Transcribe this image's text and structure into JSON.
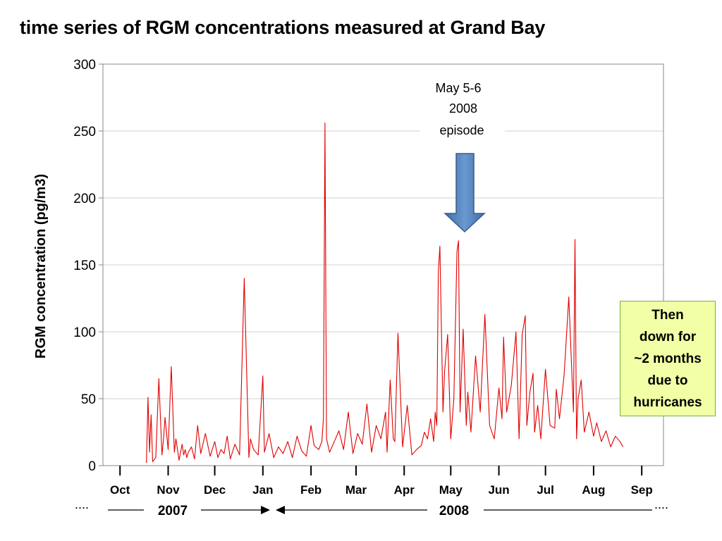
{
  "title": "time series of RGM concentrations measured at Grand Bay",
  "note": {
    "lines": [
      "Then",
      "down for",
      "~2 months",
      "due to",
      "hurricanes"
    ],
    "background": "#f2ffa6",
    "border": "#7ab040"
  },
  "episode": {
    "lines": [
      "May 5-6",
      "2008",
      "episode"
    ],
    "arrow_color": "#4f81bd",
    "arrow_border": "#385d8a"
  },
  "timeline": {
    "ellipsis": "....",
    "year_2007": "2007",
    "year_2008": "2008"
  },
  "chart_data": {
    "type": "line",
    "title": "time series of RGM concentrations measured at Grand Bay",
    "xlabel": "",
    "ylabel": "RGM concentration (pg/m3)",
    "ylim": [
      0,
      300
    ],
    "yticks": [
      0,
      50,
      100,
      150,
      200,
      250,
      300
    ],
    "xlim": [
      "2007-09-20",
      "2008-09-15"
    ],
    "month_ticks": [
      {
        "label": "Oct",
        "date": "2007-10-01"
      },
      {
        "label": "Nov",
        "date": "2007-11-01"
      },
      {
        "label": "Dec",
        "date": "2007-12-01"
      },
      {
        "label": "Jan",
        "date": "2008-01-01"
      },
      {
        "label": "Feb",
        "date": "2008-02-01"
      },
      {
        "label": "Mar",
        "date": "2008-03-01"
      },
      {
        "label": "Apr",
        "date": "2008-04-01"
      },
      {
        "label": "May",
        "date": "2008-05-01"
      },
      {
        "label": "Jun",
        "date": "2008-06-01"
      },
      {
        "label": "Jul",
        "date": "2008-07-01"
      },
      {
        "label": "Aug",
        "date": "2008-08-01"
      },
      {
        "label": "Sep",
        "date": "2008-09-01"
      }
    ],
    "grid": true,
    "legend": "none",
    "line_color": "#e00000",
    "series": [
      {
        "name": "",
        "x": [
          "2007-10-18",
          "2007-10-19",
          "2007-10-20",
          "2007-10-21",
          "2007-10-22",
          "2007-10-24",
          "2007-10-26",
          "2007-10-28",
          "2007-10-29",
          "2007-10-30",
          "2007-11-01",
          "2007-11-03",
          "2007-11-05",
          "2007-11-06",
          "2007-11-08",
          "2007-11-10",
          "2007-11-11",
          "2007-11-12",
          "2007-11-13",
          "2007-11-14",
          "2007-11-16",
          "2007-11-18",
          "2007-11-20",
          "2007-11-22",
          "2007-11-25",
          "2007-11-28",
          "2007-12-01",
          "2007-12-03",
          "2007-12-05",
          "2007-12-07",
          "2007-12-09",
          "2007-12-11",
          "2007-12-14",
          "2007-12-17",
          "2007-12-20",
          "2007-12-23",
          "2007-12-24",
          "2007-12-26",
          "2007-12-29",
          "2008-01-01",
          "2008-01-02",
          "2008-01-05",
          "2008-01-08",
          "2008-01-11",
          "2008-01-14",
          "2008-01-17",
          "2008-01-20",
          "2008-01-23",
          "2008-01-26",
          "2008-01-29",
          "2008-02-01",
          "2008-02-03",
          "2008-02-06",
          "2008-02-08",
          "2008-02-09",
          "2008-02-10",
          "2008-02-11",
          "2008-02-13",
          "2008-02-16",
          "2008-02-19",
          "2008-02-22",
          "2008-02-25",
          "2008-02-28",
          "2008-03-02",
          "2008-03-05",
          "2008-03-08",
          "2008-03-11",
          "2008-03-14",
          "2008-03-17",
          "2008-03-20",
          "2008-03-21",
          "2008-03-23",
          "2008-03-25",
          "2008-03-26",
          "2008-03-28",
          "2008-03-31",
          "2008-04-03",
          "2008-04-06",
          "2008-04-09",
          "2008-04-12",
          "2008-04-14",
          "2008-04-16",
          "2008-04-18",
          "2008-04-20",
          "2008-04-21",
          "2008-04-22",
          "2008-04-23",
          "2008-04-24",
          "2008-04-25",
          "2008-04-26",
          "2008-04-27",
          "2008-04-29",
          "2008-05-01",
          "2008-05-03",
          "2008-05-05",
          "2008-05-06",
          "2008-05-07",
          "2008-05-09",
          "2008-05-11",
          "2008-05-12",
          "2008-05-14",
          "2008-05-17",
          "2008-05-20",
          "2008-05-23",
          "2008-05-26",
          "2008-05-29",
          "2008-06-01",
          "2008-06-03",
          "2008-06-04",
          "2008-06-06",
          "2008-06-09",
          "2008-06-12",
          "2008-06-14",
          "2008-06-16",
          "2008-06-18",
          "2008-06-19",
          "2008-06-21",
          "2008-06-23",
          "2008-06-24",
          "2008-06-26",
          "2008-06-28",
          "2008-07-01",
          "2008-07-04",
          "2008-07-07",
          "2008-07-08",
          "2008-07-10",
          "2008-07-13",
          "2008-07-16",
          "2008-07-19",
          "2008-07-20",
          "2008-07-21",
          "2008-07-22",
          "2008-07-24",
          "2008-07-26",
          "2008-07-29",
          "2008-08-01",
          "2008-08-03",
          "2008-08-06",
          "2008-08-09",
          "2008-08-12",
          "2008-08-15",
          "2008-08-18",
          "2008-08-20"
        ],
        "y": [
          2,
          51,
          10,
          38,
          3,
          6,
          65,
          8,
          20,
          36,
          12,
          74,
          10,
          20,
          4,
          16,
          8,
          12,
          6,
          10,
          14,
          5,
          30,
          9,
          24,
          7,
          18,
          6,
          12,
          9,
          22,
          5,
          16,
          8,
          140,
          6,
          20,
          12,
          8,
          67,
          10,
          24,
          6,
          14,
          9,
          18,
          6,
          22,
          11,
          7,
          30,
          15,
          12,
          18,
          35,
          256,
          20,
          10,
          18,
          26,
          12,
          40,
          9,
          24,
          16,
          46,
          10,
          30,
          20,
          40,
          10,
          64,
          20,
          18,
          99,
          14,
          45,
          8,
          12,
          15,
          25,
          20,
          35,
          18,
          40,
          30,
          145,
          164,
          100,
          40,
          70,
          98,
          20,
          50,
          160,
          168,
          40,
          102,
          30,
          55,
          25,
          82,
          40,
          113,
          30,
          20,
          58,
          35,
          96,
          40,
          60,
          100,
          20,
          98,
          112,
          30,
          55,
          69,
          25,
          45,
          20,
          72,
          30,
          28,
          57,
          35,
          68,
          126,
          40,
          169,
          20,
          50,
          64,
          25,
          40,
          22,
          32,
          18,
          26,
          14,
          22,
          18,
          14
        ]
      }
    ]
  }
}
